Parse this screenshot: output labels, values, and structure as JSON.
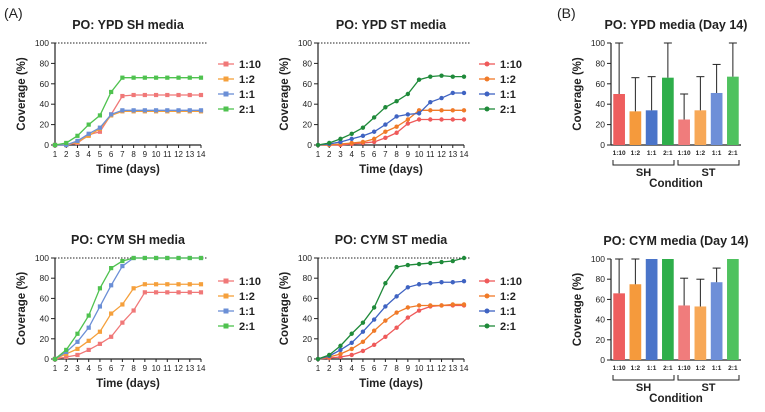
{
  "panel_labels": {
    "a": "(A)",
    "b": "(B)"
  },
  "chart_data": [
    {
      "type": "line",
      "title": "PO: YPD SH media",
      "xlabel": "Time (days)",
      "ylabel": "Coverage (%)",
      "x": [
        1,
        2,
        3,
        4,
        5,
        6,
        7,
        8,
        9,
        10,
        11,
        12,
        13,
        14
      ],
      "xlim": [
        1,
        14
      ],
      "ylim": [
        0,
        100
      ],
      "yticks": [
        0,
        20,
        40,
        60,
        80,
        100
      ],
      "reference_line": 100,
      "marker": "square",
      "series": [
        {
          "name": "1:10",
          "color": "#f07878",
          "values": [
            0,
            0,
            2,
            10,
            13,
            30,
            48,
            49,
            49,
            49,
            49,
            49,
            49,
            49
          ]
        },
        {
          "name": "1:2",
          "color": "#f5a03c",
          "values": [
            0,
            0,
            3,
            9,
            16,
            29,
            33,
            33,
            33,
            33,
            33,
            33,
            33,
            33
          ]
        },
        {
          "name": "1:1",
          "color": "#6b8fd6",
          "values": [
            0,
            0,
            4,
            11,
            17,
            30,
            34,
            34,
            34,
            34,
            34,
            34,
            34,
            34
          ]
        },
        {
          "name": "2:1",
          "color": "#4fc24f",
          "values": [
            0,
            2,
            9,
            20,
            29,
            52,
            66,
            66,
            66,
            66,
            66,
            66,
            66,
            66
          ]
        }
      ]
    },
    {
      "type": "line",
      "title": "PO: YPD ST media",
      "xlabel": "Time (days)",
      "ylabel": "Coverage (%)",
      "x": [
        1,
        2,
        3,
        4,
        5,
        6,
        7,
        8,
        9,
        10,
        11,
        12,
        13,
        14
      ],
      "xlim": [
        1,
        14
      ],
      "ylim": [
        0,
        100
      ],
      "yticks": [
        0,
        20,
        40,
        60,
        80,
        100
      ],
      "reference_line": 100,
      "marker": "circle",
      "series": [
        {
          "name": "1:10",
          "color": "#ef5a5a",
          "values": [
            0,
            0,
            0,
            1,
            2,
            3,
            7,
            12,
            21,
            25,
            25,
            25,
            25,
            25
          ]
        },
        {
          "name": "1:2",
          "color": "#f07a28",
          "values": [
            0,
            0,
            1,
            2,
            3,
            6,
            13,
            18,
            25,
            34,
            34,
            34,
            34,
            34
          ]
        },
        {
          "name": "1:1",
          "color": "#3f63c2",
          "values": [
            0,
            1,
            3,
            6,
            9,
            13,
            20,
            28,
            30,
            31,
            42,
            46,
            51,
            51
          ]
        },
        {
          "name": "2:1",
          "color": "#1f8a3a",
          "values": [
            0,
            2,
            6,
            11,
            17,
            27,
            37,
            43,
            50,
            64,
            67,
            68,
            67,
            67
          ]
        }
      ]
    },
    {
      "type": "line",
      "title": "PO: CYM SH media",
      "xlabel": "Time (days)",
      "ylabel": "Coverage (%)",
      "x": [
        1,
        2,
        3,
        4,
        5,
        6,
        7,
        8,
        9,
        10,
        11,
        12,
        13,
        14
      ],
      "xlim": [
        1,
        14
      ],
      "ylim": [
        0,
        100
      ],
      "yticks": [
        0,
        20,
        40,
        60,
        80,
        100
      ],
      "reference_line": 100,
      "marker": "square",
      "series": [
        {
          "name": "1:10",
          "color": "#f07878",
          "values": [
            0,
            2,
            4,
            9,
            15,
            22,
            36,
            48,
            66,
            66,
            66,
            66,
            66,
            66
          ]
        },
        {
          "name": "1:2",
          "color": "#f5a03c",
          "values": [
            0,
            5,
            10,
            18,
            27,
            45,
            54,
            70,
            74,
            74,
            74,
            74,
            74,
            74
          ]
        },
        {
          "name": "1:1",
          "color": "#6b8fd6",
          "values": [
            0,
            7,
            17,
            31,
            52,
            73,
            92,
            100,
            100,
            100,
            100,
            100,
            100,
            100
          ]
        },
        {
          "name": "2:1",
          "color": "#4fc24f",
          "values": [
            0,
            9,
            25,
            43,
            70,
            90,
            97,
            100,
            100,
            100,
            100,
            100,
            100,
            100
          ]
        }
      ]
    },
    {
      "type": "line",
      "title": "PO: CYM ST media",
      "xlabel": "Time (days)",
      "ylabel": "Coverage (%)",
      "x": [
        1,
        2,
        3,
        4,
        5,
        6,
        7,
        8,
        9,
        10,
        11,
        12,
        13,
        14
      ],
      "xlim": [
        1,
        14
      ],
      "ylim": [
        0,
        100
      ],
      "yticks": [
        0,
        20,
        40,
        60,
        80,
        100
      ],
      "reference_line": 100,
      "marker": "circle",
      "series": [
        {
          "name": "1:10",
          "color": "#ef5a5a",
          "values": [
            0,
            1,
            2,
            4,
            8,
            14,
            22,
            31,
            41,
            48,
            52,
            53,
            53,
            53
          ]
        },
        {
          "name": "1:2",
          "color": "#f07a28",
          "values": [
            0,
            2,
            5,
            10,
            17,
            28,
            38,
            46,
            51,
            53,
            53,
            53,
            54,
            54
          ]
        },
        {
          "name": "1:1",
          "color": "#3f63c2",
          "values": [
            0,
            3,
            9,
            16,
            27,
            39,
            52,
            62,
            71,
            74,
            75,
            76,
            76,
            77
          ]
        },
        {
          "name": "2:1",
          "color": "#1f8a3a",
          "values": [
            0,
            4,
            13,
            25,
            36,
            51,
            75,
            91,
            93,
            94,
            95,
            96,
            97,
            100
          ]
        }
      ]
    },
    {
      "type": "bar",
      "title": "PO: YPD media (Day 14)",
      "xlabel": "Condition",
      "ylabel": "Coverage (%)",
      "ylim": [
        0,
        100
      ],
      "yticks": [
        0,
        20,
        40,
        60,
        80,
        100
      ],
      "categories": [
        "1:10",
        "1:2",
        "1:1",
        "2:1",
        "1:10",
        "1:2",
        "1:1",
        "2:1"
      ],
      "groups": [
        {
          "label": "SH",
          "start": 0,
          "end": 3
        },
        {
          "label": "ST",
          "start": 4,
          "end": 7
        }
      ],
      "values": [
        50,
        33,
        34,
        66,
        25,
        34,
        51,
        67
      ],
      "error_upper": [
        100,
        66,
        67,
        100,
        50,
        67,
        79,
        100
      ],
      "colors": [
        "#ee5e5e",
        "#f59a3c",
        "#4a74c9",
        "#2eae4a",
        "#f07c7c",
        "#f7a857",
        "#6e8fd8",
        "#4fc25f"
      ]
    },
    {
      "type": "bar",
      "title": "PO: CYM media (Day 14)",
      "xlabel": "Condition",
      "ylabel": "Coverage (%)",
      "ylim": [
        0,
        100
      ],
      "yticks": [
        0,
        20,
        40,
        60,
        80,
        100
      ],
      "categories": [
        "1:10",
        "1:2",
        "1:1",
        "2:1",
        "1:10",
        "1:2",
        "1:1",
        "2:1"
      ],
      "groups": [
        {
          "label": "SH",
          "start": 0,
          "end": 3
        },
        {
          "label": "ST",
          "start": 4,
          "end": 7
        }
      ],
      "values": [
        66,
        75,
        100,
        100,
        54,
        53,
        77,
        100
      ],
      "error_upper": [
        100,
        100,
        100,
        100,
        81,
        80,
        91,
        100
      ],
      "colors": [
        "#ee5e5e",
        "#f59a3c",
        "#4a74c9",
        "#2eae4a",
        "#f07c7c",
        "#f7a857",
        "#6e8fd8",
        "#4fc25f"
      ]
    }
  ]
}
